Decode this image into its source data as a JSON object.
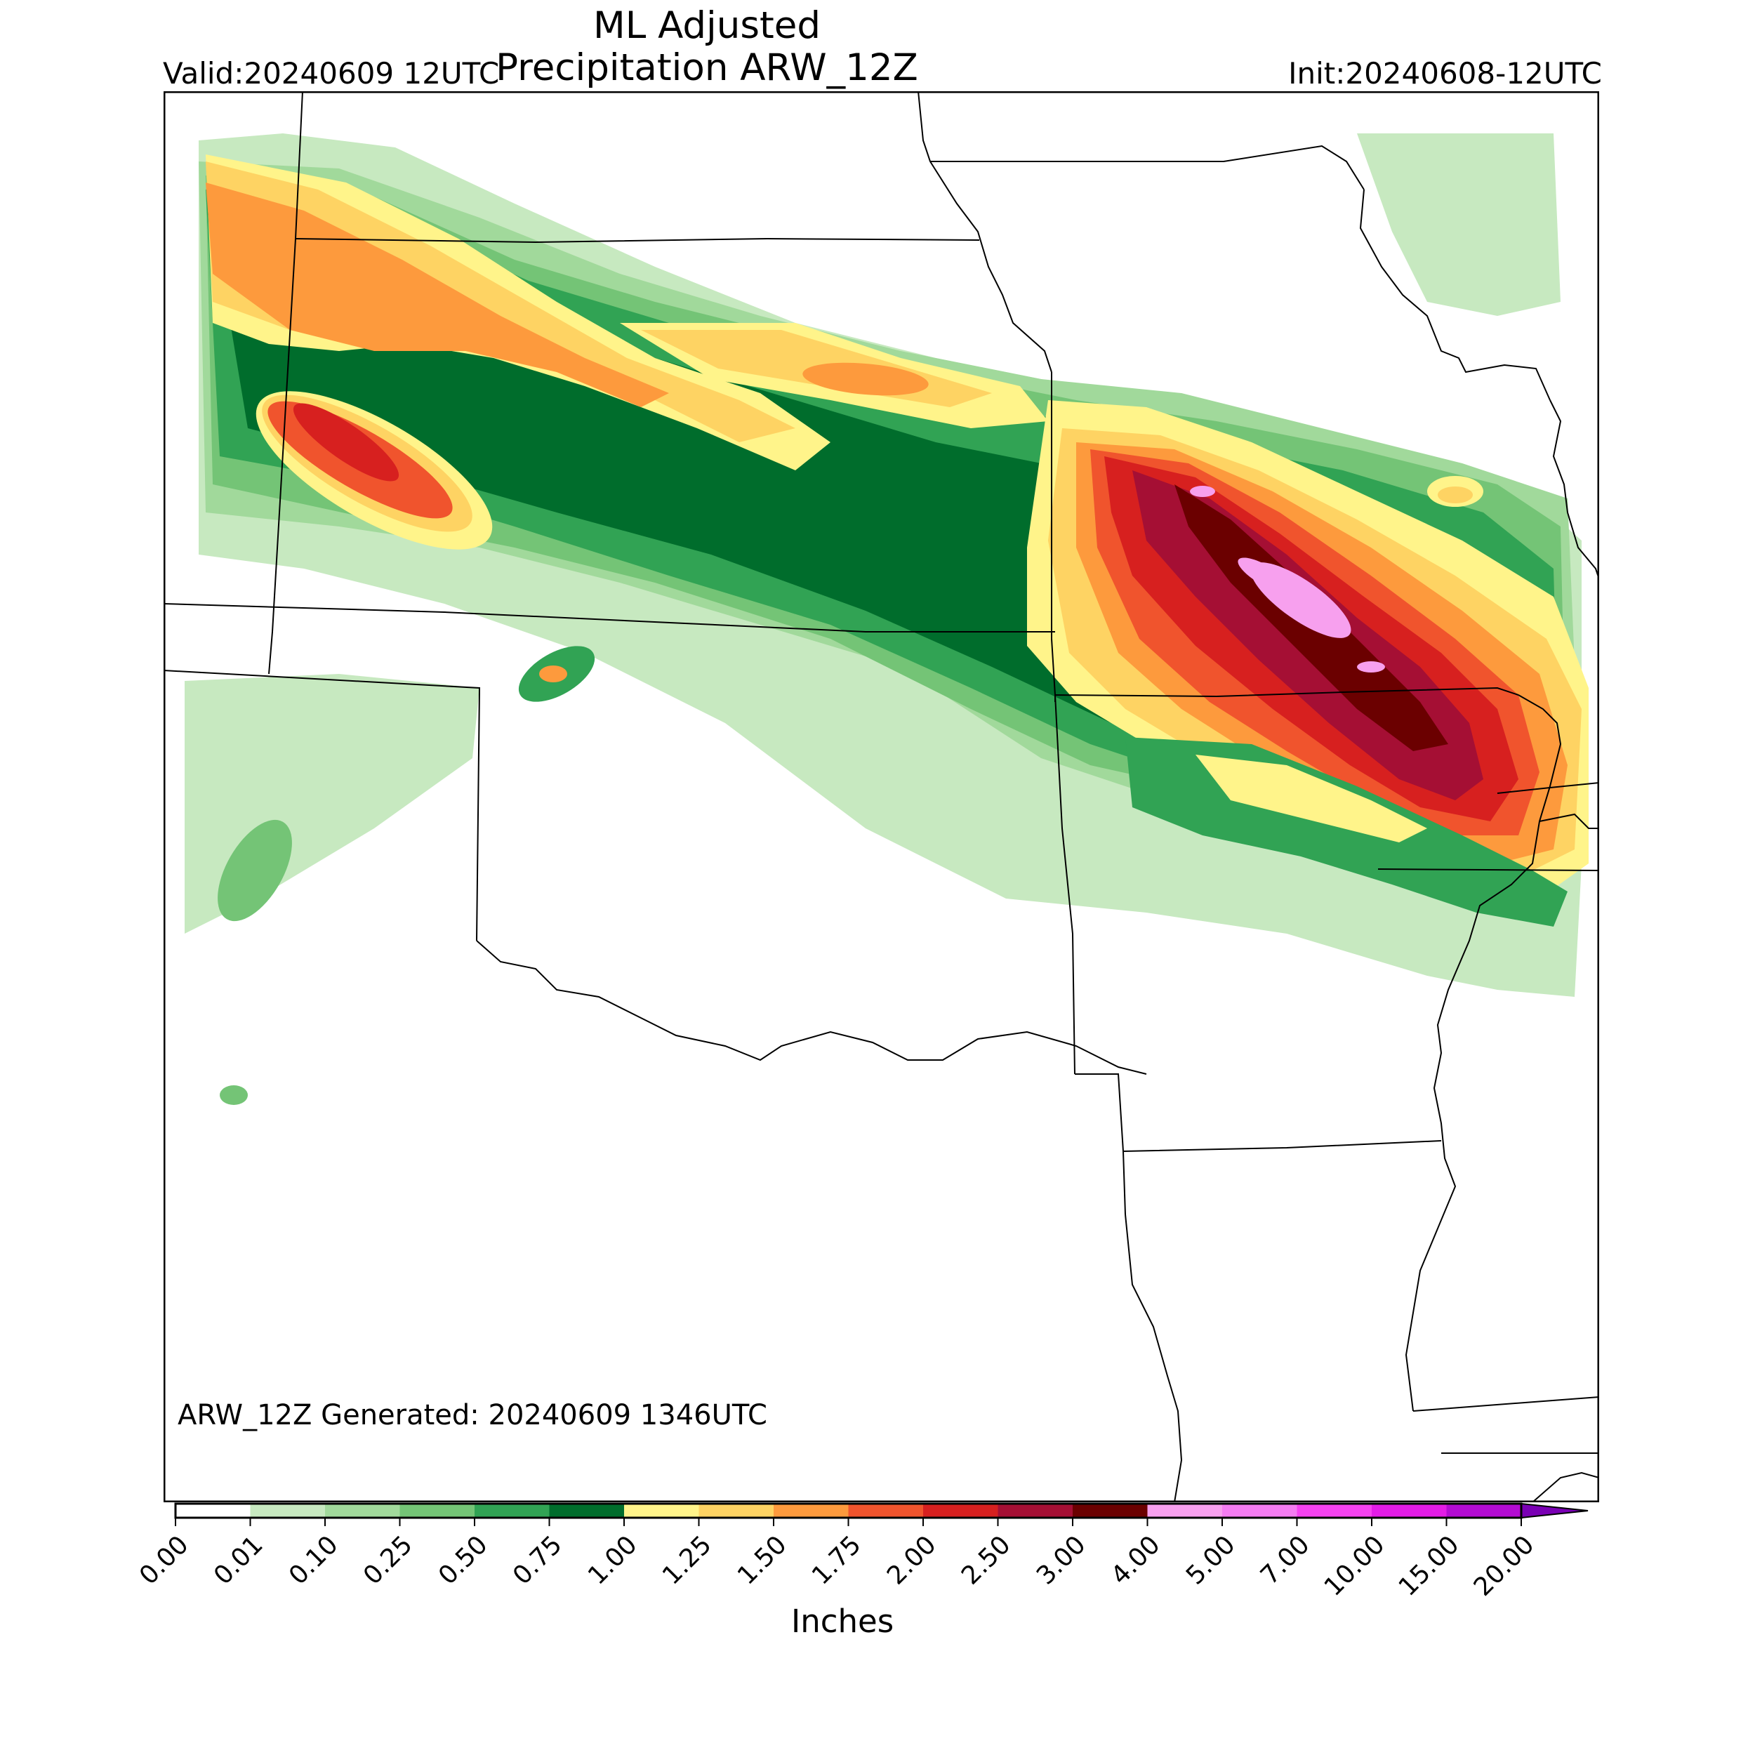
{
  "title": {
    "line1": "ML Adjusted",
    "line2": "Precipitation ARW_12Z",
    "valid": "Valid:20240609 12UTC",
    "init": "Init:20240608-12UTC"
  },
  "footer": {
    "generated": "ARW_12Z Generated: 20240609 1346UTC"
  },
  "colorbar": {
    "label": "Inches",
    "ticks": [
      "0.00",
      "0.01",
      "0.10",
      "0.25",
      "0.50",
      "0.75",
      "1.00",
      "1.25",
      "1.50",
      "1.75",
      "2.00",
      "2.50",
      "3.00",
      "4.00",
      "5.00",
      "7.00",
      "10.00",
      "15.00",
      "20.00"
    ],
    "colors": [
      "#ffffff",
      "#c7e9c0",
      "#a1d99b",
      "#74c476",
      "#31a354",
      "#006d2c",
      "#fff48a",
      "#fed363",
      "#fd9a3d",
      "#f0542d",
      "#d7201f",
      "#a50f34",
      "#6b0000",
      "#f7a0ee",
      "#f47cf1",
      "#f542f0",
      "#e31ce6",
      "#b30bd2",
      "#7a00b4"
    ],
    "extend_color": "#4b0082"
  },
  "map_info": {
    "region": "Central Plains / Midwest United States",
    "colors": {
      "c1": "#c7e9c0",
      "c2": "#a1d99b",
      "c3": "#74c476",
      "c4": "#31a354",
      "c5": "#006d2c",
      "y": "#fff48a",
      "o1": "#fed363",
      "o2": "#fd9a3d",
      "r1": "#f0542d",
      "r2": "#d7201f",
      "r3": "#a50f34",
      "dk": "#6b0000",
      "pk": "#f7a0ee"
    }
  }
}
